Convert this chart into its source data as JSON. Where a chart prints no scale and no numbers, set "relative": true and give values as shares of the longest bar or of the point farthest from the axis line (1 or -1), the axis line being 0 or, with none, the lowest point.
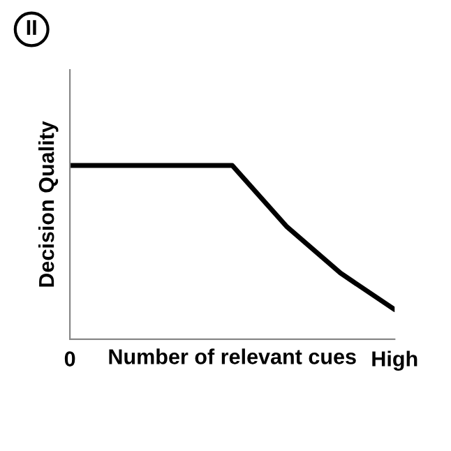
{
  "chart_data": {
    "type": "line",
    "relative": true,
    "ylabel": "Decision Quality",
    "xlabel": "Number of relevant cues",
    "categories": [
      "0",
      null,
      null,
      null,
      null,
      null,
      "High"
    ],
    "series": [
      {
        "color": "#000000",
        "values": [
          1,
          1,
          1,
          1,
          0.65,
          0.38,
          0.17
        ]
      }
    ],
    "annotations": [
      "II"
    ],
    "tick_labels": "x",
    "grid": false,
    "marker": "none",
    "line_style": "solid"
  }
}
